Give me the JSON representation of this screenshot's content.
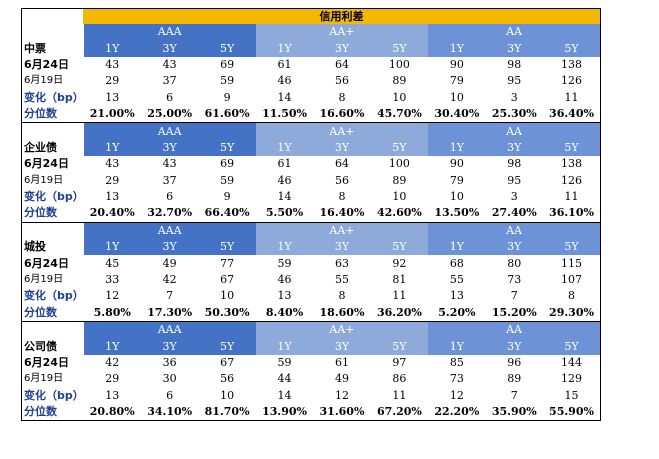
{
  "title": "信用利差",
  "groups": [
    "AAA",
    "AA+",
    "AA"
  ],
  "tenors": [
    "1Y",
    "3Y",
    "5Y"
  ],
  "row_labels": {
    "d1": "6月24日",
    "d2": "6月19日",
    "chg": "变化（bp）",
    "pct": "分位数"
  },
  "sections": [
    {
      "name": "中票",
      "d1": [
        "43",
        "43",
        "69",
        "61",
        "64",
        "100",
        "90",
        "98",
        "138"
      ],
      "d2": [
        "29",
        "37",
        "59",
        "46",
        "56",
        "89",
        "79",
        "95",
        "126"
      ],
      "chg": [
        "13",
        "6",
        "9",
        "14",
        "8",
        "10",
        "10",
        "3",
        "11"
      ],
      "pct": [
        "21.00%",
        "25.00%",
        "61.60%",
        "11.50%",
        "16.60%",
        "45.70%",
        "30.40%",
        "25.30%",
        "36.40%"
      ]
    },
    {
      "name": "企业债",
      "d1": [
        "43",
        "43",
        "69",
        "61",
        "64",
        "100",
        "90",
        "98",
        "138"
      ],
      "d2": [
        "29",
        "37",
        "59",
        "46",
        "56",
        "89",
        "79",
        "95",
        "126"
      ],
      "chg": [
        "13",
        "6",
        "9",
        "14",
        "8",
        "10",
        "10",
        "3",
        "11"
      ],
      "pct": [
        "20.40%",
        "32.70%",
        "66.40%",
        "5.50%",
        "16.40%",
        "42.60%",
        "13.50%",
        "27.40%",
        "36.10%"
      ]
    },
    {
      "name": "城投",
      "d1": [
        "45",
        "49",
        "77",
        "59",
        "63",
        "92",
        "68",
        "80",
        "115"
      ],
      "d2": [
        "33",
        "42",
        "67",
        "46",
        "55",
        "81",
        "55",
        "73",
        "107"
      ],
      "chg": [
        "12",
        "7",
        "10",
        "13",
        "8",
        "11",
        "13",
        "7",
        "8"
      ],
      "pct": [
        "5.80%",
        "17.30%",
        "50.30%",
        "8.40%",
        "18.60%",
        "36.20%",
        "5.20%",
        "15.20%",
        "29.30%"
      ]
    },
    {
      "name": "公司债",
      "d1": [
        "42",
        "36",
        "67",
        "59",
        "61",
        "97",
        "85",
        "96",
        "144"
      ],
      "d2": [
        "29",
        "30",
        "56",
        "44",
        "49",
        "86",
        "73",
        "89",
        "129"
      ],
      "chg": [
        "13",
        "6",
        "10",
        "14",
        "12",
        "11",
        "12",
        "7",
        "15"
      ],
      "pct": [
        "20.80%",
        "34.10%",
        "81.70%",
        "13.90%",
        "31.60%",
        "67.20%",
        "22.20%",
        "35.90%",
        "55.90%"
      ]
    }
  ]
}
